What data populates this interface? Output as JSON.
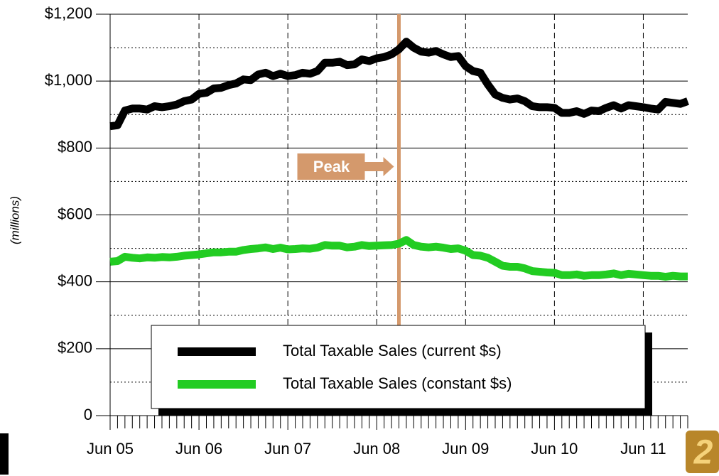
{
  "chart_data": {
    "type": "line",
    "ylabel": "(millions)",
    "categories": [
      "Jun 05",
      null,
      null,
      null,
      null,
      null,
      null,
      null,
      null,
      null,
      null,
      null,
      "Jun 06",
      null,
      null,
      null,
      null,
      null,
      null,
      null,
      null,
      null,
      null,
      null,
      "Jun 07",
      null,
      null,
      null,
      null,
      null,
      null,
      null,
      null,
      null,
      null,
      null,
      "Jun 08",
      null,
      null,
      null,
      null,
      null,
      null,
      null,
      null,
      null,
      null,
      null,
      "Jun 09",
      null,
      null,
      null,
      null,
      null,
      null,
      null,
      null,
      null,
      null,
      null,
      "Jun 10",
      null,
      null,
      null,
      null,
      null,
      null,
      null,
      null,
      null,
      null,
      null,
      "Jun 11",
      null,
      null,
      null,
      null,
      null,
      null
    ],
    "series": [
      {
        "name": "Total Taxable Sales (current $s)",
        "color": "#000000",
        "values": [
          865,
          868,
          912,
          918,
          918,
          915,
          925,
          922,
          925,
          930,
          940,
          945,
          962,
          965,
          978,
          980,
          988,
          993,
          1005,
          1003,
          1020,
          1025,
          1015,
          1022,
          1015,
          1018,
          1025,
          1022,
          1030,
          1055,
          1055,
          1058,
          1048,
          1050,
          1065,
          1060,
          1068,
          1072,
          1080,
          1095,
          1118,
          1100,
          1088,
          1085,
          1090,
          1080,
          1072,
          1075,
          1045,
          1030,
          1025,
          990,
          960,
          950,
          945,
          948,
          940,
          925,
          922,
          922,
          920,
          905,
          905,
          910,
          902,
          912,
          910,
          920,
          928,
          918,
          928,
          925,
          922,
          918,
          915,
          938,
          935,
          932,
          940
        ]
      },
      {
        "name": "Total Taxable Sales (constant $s)",
        "color": "#22cc22",
        "values": [
          460,
          462,
          475,
          472,
          470,
          473,
          472,
          474,
          473,
          475,
          478,
          480,
          482,
          485,
          488,
          488,
          490,
          490,
          495,
          498,
          500,
          503,
          498,
          502,
          497,
          498,
          500,
          499,
          502,
          510,
          508,
          508,
          503,
          505,
          510,
          507,
          508,
          509,
          510,
          514,
          525,
          510,
          505,
          503,
          505,
          502,
          498,
          500,
          493,
          480,
          478,
          472,
          460,
          448,
          445,
          445,
          440,
          432,
          430,
          428,
          427,
          420,
          420,
          422,
          418,
          420,
          420,
          422,
          425,
          420,
          424,
          422,
          420,
          418,
          418,
          415,
          418,
          416,
          416
        ]
      }
    ],
    "ylim": [
      0,
      1200
    ],
    "yticks": [
      0,
      {
        "value": 200,
        "label": "$200"
      },
      {
        "value": 400,
        "label": "$400"
      },
      {
        "value": 600,
        "label": "$600"
      },
      {
        "value": 800,
        "label": "$800"
      },
      {
        "value": 1000,
        "label": "$1,000"
      },
      {
        "value": 1200,
        "label": "$1,200"
      }
    ],
    "yminorticks": [
      100,
      300,
      500,
      700,
      900,
      1100
    ],
    "grid": true,
    "annotations": [
      {
        "text": "Peak",
        "x": 39,
        "color": "#d4996c"
      }
    ]
  }
}
